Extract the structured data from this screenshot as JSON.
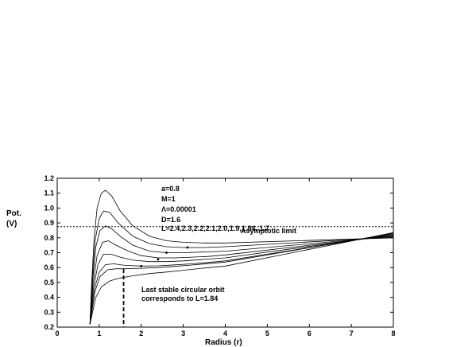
{
  "chart_data": {
    "type": "line",
    "title": "",
    "xlabel": "Radius (r)",
    "ylabel_line1": "Pot.",
    "ylabel_line2": "(V)",
    "xlim": [
      0,
      8
    ],
    "ylim": [
      0.2,
      1.2
    ],
    "x_ticks": [
      0,
      1,
      2,
      3,
      4,
      5,
      6,
      7,
      8
    ],
    "y_ticks": [
      0.2,
      0.3,
      0.4,
      0.5,
      0.6,
      0.7,
      0.8,
      0.9,
      1.0,
      1.1,
      1.2
    ],
    "y_tick_labels": [
      "0.2",
      "0.3",
      "0.4",
      "0.5",
      "0.6",
      "0.7",
      "0.8",
      "0.9",
      "1.0",
      "1.1",
      "1.2"
    ],
    "grid": false,
    "legend": {
      "line1": "a=0.8",
      "line2": "M=1",
      "line3": "Λ=0.00001",
      "line4": "D=1.6",
      "line5": "L=2.4,2.3,2.2,2.1,2.0,1.9,1.84, 1.7"
    },
    "asymptote": {
      "label": "Asymptotic limit",
      "y": 0.875
    },
    "annotation": {
      "line1": "Last stable circular orbit",
      "line2": "corresponds to L=1.84",
      "x": 1.58,
      "y_top": 0.59
    },
    "series": [
      {
        "L": 2.4,
        "points": [
          [
            0.78,
            0.22
          ],
          [
            0.82,
            0.5
          ],
          [
            0.88,
            0.8
          ],
          [
            0.95,
            1.0
          ],
          [
            1.05,
            1.1
          ],
          [
            1.15,
            1.12
          ],
          [
            1.3,
            1.08
          ],
          [
            1.5,
            0.98
          ],
          [
            1.8,
            0.88
          ],
          [
            2.2,
            0.81
          ],
          [
            2.6,
            0.78
          ],
          [
            3.0,
            0.77
          ],
          [
            3.5,
            0.765
          ],
          [
            4.0,
            0.765
          ]
        ]
      },
      {
        "L": 2.3,
        "points": [
          [
            0.78,
            0.22
          ],
          [
            0.82,
            0.47
          ],
          [
            0.9,
            0.78
          ],
          [
            1.0,
            0.93
          ],
          [
            1.1,
            0.98
          ],
          [
            1.25,
            0.97
          ],
          [
            1.45,
            0.9
          ],
          [
            1.8,
            0.81
          ],
          [
            2.2,
            0.76
          ],
          [
            2.6,
            0.74
          ],
          [
            3.0,
            0.735
          ],
          [
            3.5,
            0.735
          ],
          [
            4.0,
            0.74
          ]
        ]
      },
      {
        "L": 2.2,
        "points": [
          [
            0.78,
            0.22
          ],
          [
            0.84,
            0.5
          ],
          [
            0.92,
            0.74
          ],
          [
            1.02,
            0.85
          ],
          [
            1.15,
            0.88
          ],
          [
            1.3,
            0.86
          ],
          [
            1.5,
            0.81
          ],
          [
            1.8,
            0.75
          ],
          [
            2.2,
            0.71
          ],
          [
            2.6,
            0.7
          ],
          [
            3.0,
            0.7
          ],
          [
            3.5,
            0.705
          ],
          [
            4.0,
            0.71
          ]
        ]
      },
      {
        "L": 2.1,
        "points": [
          [
            0.78,
            0.22
          ],
          [
            0.85,
            0.48
          ],
          [
            0.95,
            0.68
          ],
          [
            1.08,
            0.77
          ],
          [
            1.22,
            0.78
          ],
          [
            1.4,
            0.75
          ],
          [
            1.7,
            0.71
          ],
          [
            2.0,
            0.68
          ],
          [
            2.4,
            0.665
          ],
          [
            2.8,
            0.665
          ],
          [
            3.2,
            0.67
          ],
          [
            3.6,
            0.675
          ],
          [
            4.0,
            0.685
          ]
        ]
      },
      {
        "L": 2.0,
        "points": [
          [
            0.78,
            0.22
          ],
          [
            0.86,
            0.46
          ],
          [
            0.97,
            0.62
          ],
          [
            1.1,
            0.69
          ],
          [
            1.28,
            0.69
          ],
          [
            1.5,
            0.67
          ],
          [
            1.8,
            0.65
          ],
          [
            2.2,
            0.64
          ],
          [
            2.6,
            0.64
          ],
          [
            3.0,
            0.645
          ],
          [
            3.5,
            0.655
          ],
          [
            4.0,
            0.665
          ]
        ]
      },
      {
        "L": 1.9,
        "points": [
          [
            0.78,
            0.22
          ],
          [
            0.88,
            0.45
          ],
          [
            1.0,
            0.57
          ],
          [
            1.15,
            0.62
          ],
          [
            1.35,
            0.625
          ],
          [
            1.6,
            0.615
          ],
          [
            2.0,
            0.61
          ],
          [
            2.4,
            0.612
          ],
          [
            2.8,
            0.618
          ],
          [
            3.2,
            0.625
          ],
          [
            3.6,
            0.635
          ],
          [
            4.0,
            0.645
          ]
        ]
      },
      {
        "L": 1.84,
        "points": [
          [
            0.78,
            0.22
          ],
          [
            0.9,
            0.44
          ],
          [
            1.02,
            0.54
          ],
          [
            1.2,
            0.585
          ],
          [
            1.4,
            0.592
          ],
          [
            1.6,
            0.592
          ],
          [
            2.0,
            0.595
          ],
          [
            2.4,
            0.6
          ],
          [
            2.8,
            0.608
          ],
          [
            3.2,
            0.617
          ],
          [
            3.6,
            0.627
          ],
          [
            4.0,
            0.637
          ]
        ]
      },
      {
        "L": 1.7,
        "points": [
          [
            0.78,
            0.22
          ],
          [
            0.92,
            0.4
          ],
          [
            1.05,
            0.47
          ],
          [
            1.25,
            0.51
          ],
          [
            1.5,
            0.53
          ],
          [
            1.8,
            0.545
          ],
          [
            2.2,
            0.56
          ],
          [
            2.6,
            0.57
          ],
          [
            3.0,
            0.582
          ],
          [
            3.5,
            0.597
          ],
          [
            4.0,
            0.61
          ]
        ]
      }
    ],
    "tail_values_at_x8": [
      0.8,
      0.805,
      0.81,
      0.815,
      0.82,
      0.825,
      0.83,
      0.835
    ],
    "minima_markers": [
      [
        2.0,
        0.61
      ],
      [
        2.4,
        0.655
      ],
      [
        2.6,
        0.7
      ],
      [
        3.1,
        0.735
      ]
    ]
  }
}
